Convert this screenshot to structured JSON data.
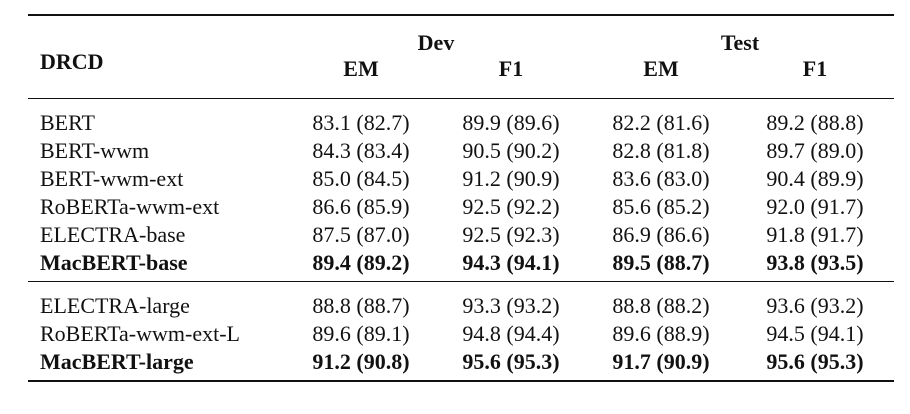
{
  "table": {
    "corner_label": "DRCD",
    "groups": [
      "Dev",
      "Test"
    ],
    "subheaders": [
      "EM",
      "F1",
      "EM",
      "F1"
    ],
    "section1": [
      {
        "model": "BERT",
        "dev_em": "83.1 (82.7)",
        "dev_f1": "89.9 (89.6)",
        "test_em": "82.2 (81.6)",
        "test_f1": "89.2 (88.8)"
      },
      {
        "model": "BERT-wwm",
        "dev_em": "84.3 (83.4)",
        "dev_f1": "90.5 (90.2)",
        "test_em": "82.8 (81.8)",
        "test_f1": "89.7 (89.0)"
      },
      {
        "model": "BERT-wwm-ext",
        "dev_em": "85.0 (84.5)",
        "dev_f1": "91.2 (90.9)",
        "test_em": "83.6 (83.0)",
        "test_f1": "90.4 (89.9)"
      },
      {
        "model": "RoBERTa-wwm-ext",
        "dev_em": "86.6 (85.9)",
        "dev_f1": "92.5 (92.2)",
        "test_em": "85.6 (85.2)",
        "test_f1": "92.0 (91.7)"
      },
      {
        "model": "ELECTRA-base",
        "dev_em": "87.5 (87.0)",
        "dev_f1": "92.5 (92.3)",
        "test_em": "86.9 (86.6)",
        "test_f1": "91.8 (91.7)"
      },
      {
        "model": "MacBERT-base",
        "dev_em": "89.4 (89.2)",
        "dev_f1": "94.3 (94.1)",
        "test_em": "89.5 (88.7)",
        "test_f1": "93.8 (93.5)"
      }
    ],
    "section2": [
      {
        "model": "ELECTRA-large",
        "dev_em": "88.8 (88.7)",
        "dev_f1": "93.3 (93.2)",
        "test_em": "88.8 (88.2)",
        "test_f1": "93.6 (93.2)"
      },
      {
        "model": "RoBERTa-wwm-ext-L",
        "dev_em": "89.6 (89.1)",
        "dev_f1": "94.8 (94.4)",
        "test_em": "89.6 (88.9)",
        "test_f1": "94.5 (94.1)"
      },
      {
        "model": "MacBERT-large",
        "dev_em": "91.2 (90.8)",
        "dev_f1": "95.6 (95.3)",
        "test_em": "91.7 (90.9)",
        "test_f1": "95.6 (95.3)"
      }
    ]
  }
}
